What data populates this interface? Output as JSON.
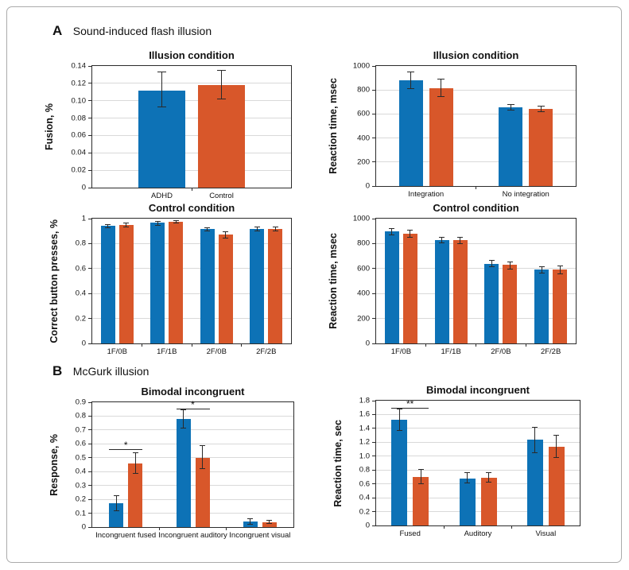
{
  "panels": {
    "a": {
      "letter": "A",
      "title": "Sound-induced flash illusion"
    },
    "b": {
      "letter": "B",
      "title": "McGurk illusion"
    }
  },
  "colors": {
    "bar_blue": "#0D72B6",
    "bar_orange": "#D8572A",
    "grid": "#d9d9d9",
    "axis": "#2b2b2b",
    "error_bar": "#2a2a2a",
    "frame_border": "#ababab"
  },
  "chart_data": [
    {
      "id": "sifi-illusion-fusion",
      "type": "bar",
      "title": "Illusion condition",
      "xlabel": "",
      "ylabel": "Fusion, %",
      "ylim": [
        0,
        0.14
      ],
      "ytick_labels": [
        "0",
        "0.02",
        "0.04",
        "0.06",
        "0.08",
        "0.10",
        "0.12",
        "0.14"
      ],
      "grid": true,
      "legend": "none",
      "categories": [
        "ADHD",
        "Control"
      ],
      "bars": [
        {
          "category": "ADHD",
          "color": "blue",
          "value": 0.112,
          "err_lo": 0.093,
          "err_hi": 0.133
        },
        {
          "category": "Control",
          "color": "orange",
          "value": 0.118,
          "err_lo": 0.102,
          "err_hi": 0.135
        }
      ],
      "annotations": []
    },
    {
      "id": "sifi-illusion-rt",
      "type": "bar",
      "title": "Illusion condition",
      "xlabel": "",
      "ylabel": "Reaction time, msec",
      "ylim": [
        0,
        1000
      ],
      "ytick_labels": [
        "0",
        "200",
        "400",
        "600",
        "800",
        "1000"
      ],
      "grid": true,
      "legend": "none",
      "categories": [
        "Integration",
        "No integration"
      ],
      "bars": [
        {
          "category": "Integration",
          "color": "blue",
          "value": 880,
          "err_lo": 808,
          "err_hi": 952
        },
        {
          "category": "Integration",
          "color": "orange",
          "value": 815,
          "err_lo": 748,
          "err_hi": 888
        },
        {
          "category": "No integration",
          "color": "blue",
          "value": 658,
          "err_lo": 634,
          "err_hi": 680
        },
        {
          "category": "No integration",
          "color": "orange",
          "value": 641,
          "err_lo": 617,
          "err_hi": 663
        }
      ],
      "annotations": []
    },
    {
      "id": "sifi-control-correct",
      "type": "bar",
      "title": "Control condition",
      "xlabel": "",
      "ylabel": "Correct button presses, %",
      "ylim": [
        0,
        1
      ],
      "ytick_labels": [
        "0",
        "0.2",
        "0.4",
        "0.6",
        "0.8",
        "1"
      ],
      "grid": true,
      "legend": "none",
      "categories": [
        "1F/0B",
        "1F/1B",
        "2F/0B",
        "2F/2B"
      ],
      "bars": [
        {
          "category": "1F/0B",
          "color": "blue",
          "value": 0.94,
          "err_lo": 0.925,
          "err_hi": 0.955
        },
        {
          "category": "1F/0B",
          "color": "orange",
          "value": 0.95,
          "err_lo": 0.935,
          "err_hi": 0.962
        },
        {
          "category": "1F/1B",
          "color": "blue",
          "value": 0.965,
          "err_lo": 0.948,
          "err_hi": 0.98
        },
        {
          "category": "1F/1B",
          "color": "orange",
          "value": 0.975,
          "err_lo": 0.966,
          "err_hi": 0.984
        },
        {
          "category": "2F/0B",
          "color": "blue",
          "value": 0.915,
          "err_lo": 0.902,
          "err_hi": 0.928
        },
        {
          "category": "2F/0B",
          "color": "orange",
          "value": 0.87,
          "err_lo": 0.842,
          "err_hi": 0.896
        },
        {
          "category": "2F/2B",
          "color": "blue",
          "value": 0.915,
          "err_lo": 0.9,
          "err_hi": 0.93
        },
        {
          "category": "2F/2B",
          "color": "orange",
          "value": 0.92,
          "err_lo": 0.904,
          "err_hi": 0.936
        }
      ],
      "annotations": []
    },
    {
      "id": "sifi-control-rt",
      "type": "bar",
      "title": "Control condition",
      "xlabel": "",
      "ylabel": "Reaction time, msec",
      "ylim": [
        0,
        1000
      ],
      "ytick_labels": [
        "0",
        "200",
        "400",
        "600",
        "800",
        "1000"
      ],
      "grid": true,
      "legend": "none",
      "categories": [
        "1F/0B",
        "1F/1B",
        "2F/0B",
        "2F/2B"
      ],
      "bars": [
        {
          "category": "1F/0B",
          "color": "blue",
          "value": 895,
          "err_lo": 868,
          "err_hi": 920
        },
        {
          "category": "1F/0B",
          "color": "orange",
          "value": 878,
          "err_lo": 848,
          "err_hi": 906
        },
        {
          "category": "1F/1B",
          "color": "blue",
          "value": 828,
          "err_lo": 806,
          "err_hi": 850
        },
        {
          "category": "1F/1B",
          "color": "orange",
          "value": 826,
          "err_lo": 802,
          "err_hi": 848
        },
        {
          "category": "2F/0B",
          "color": "blue",
          "value": 640,
          "err_lo": 616,
          "err_hi": 664
        },
        {
          "category": "2F/0B",
          "color": "orange",
          "value": 628,
          "err_lo": 598,
          "err_hi": 656
        },
        {
          "category": "2F/2B",
          "color": "blue",
          "value": 592,
          "err_lo": 564,
          "err_hi": 614
        },
        {
          "category": "2F/2B",
          "color": "orange",
          "value": 590,
          "err_lo": 558,
          "err_hi": 618
        }
      ],
      "annotations": []
    },
    {
      "id": "mcgurk-response",
      "type": "bar",
      "title": "Bimodal incongruent",
      "xlabel": "",
      "ylabel": "Response, %",
      "ylim": [
        0,
        0.9
      ],
      "ytick_labels": [
        "0",
        "0.1",
        "0.2",
        "0.3",
        "0.4",
        "0.5",
        "0.6",
        "0.7",
        "0.8",
        "0.9"
      ],
      "grid": true,
      "legend": "none",
      "categories": [
        "Incongruent fused",
        "Incongruent auditory",
        "Incongruent visual"
      ],
      "bars": [
        {
          "category": "Incongruent fused",
          "color": "blue",
          "value": 0.17,
          "err_lo": 0.118,
          "err_hi": 0.224
        },
        {
          "category": "Incongruent fused",
          "color": "orange",
          "value": 0.46,
          "err_lo": 0.386,
          "err_hi": 0.534
        },
        {
          "category": "Incongruent auditory",
          "color": "blue",
          "value": 0.78,
          "err_lo": 0.716,
          "err_hi": 0.846
        },
        {
          "category": "Incongruent auditory",
          "color": "orange",
          "value": 0.5,
          "err_lo": 0.424,
          "err_hi": 0.586
        },
        {
          "category": "Incongruent visual",
          "color": "blue",
          "value": 0.04,
          "err_lo": 0.021,
          "err_hi": 0.06
        },
        {
          "category": "Incongruent visual",
          "color": "orange",
          "value": 0.035,
          "err_lo": 0.023,
          "err_hi": 0.048
        }
      ],
      "annotations": [
        {
          "category": "Incongruent fused",
          "text": "*",
          "y": 0.56
        },
        {
          "category": "Incongruent auditory",
          "text": "*",
          "y": 0.857
        }
      ]
    },
    {
      "id": "mcgurk-rt",
      "type": "bar",
      "title": "Bimodal incongruent",
      "xlabel": "",
      "ylabel": "Reaction time, sec",
      "ylim": [
        0,
        1.8
      ],
      "ytick_labels": [
        "0",
        "0.2",
        "0.4",
        "0.6",
        "0.8",
        "1.0",
        "1.2",
        "1.4",
        "1.6",
        "1.8"
      ],
      "grid": true,
      "legend": "none",
      "categories": [
        "Fused",
        "Auditory",
        "Visual"
      ],
      "bars": [
        {
          "category": "Fused",
          "color": "blue",
          "value": 1.53,
          "err_lo": 1.375,
          "err_hi": 1.68
        },
        {
          "category": "Fused",
          "color": "orange",
          "value": 0.7,
          "err_lo": 0.6,
          "err_hi": 0.805
        },
        {
          "category": "Auditory",
          "color": "blue",
          "value": 0.68,
          "err_lo": 0.615,
          "err_hi": 0.765
        },
        {
          "category": "Auditory",
          "color": "orange",
          "value": 0.69,
          "err_lo": 0.625,
          "err_hi": 0.76
        },
        {
          "category": "Visual",
          "color": "blue",
          "value": 1.235,
          "err_lo": 1.05,
          "err_hi": 1.42
        },
        {
          "category": "Visual",
          "color": "orange",
          "value": 1.14,
          "err_lo": 0.985,
          "err_hi": 1.3
        }
      ],
      "annotations": [
        {
          "category": "Fused",
          "text": "**",
          "y": 1.7
        }
      ]
    }
  ]
}
